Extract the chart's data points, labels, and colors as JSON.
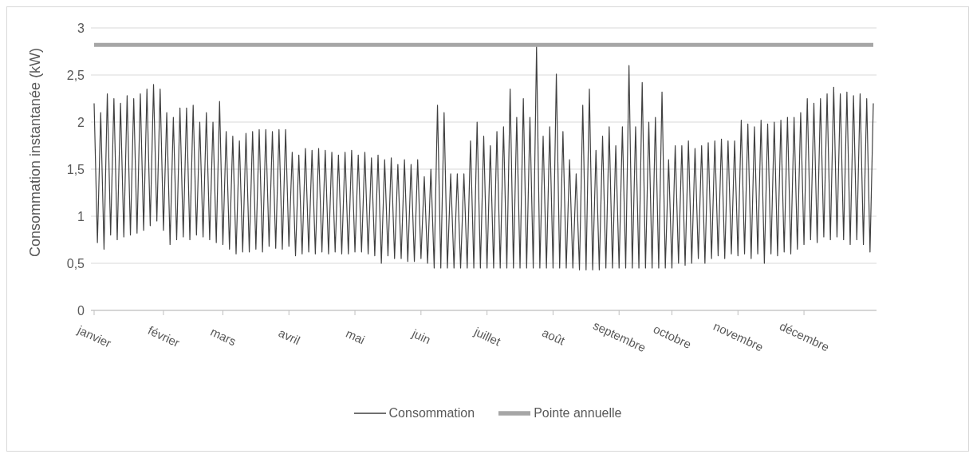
{
  "chart_data": {
    "type": "line",
    "ylabel": "Consommation instantanée (kW)",
    "categories": [
      "janvier",
      null,
      null,
      null,
      null,
      null,
      null,
      null,
      null,
      null,
      null,
      null,
      null,
      null,
      null,
      null,
      null,
      null,
      null,
      null,
      null,
      "février",
      null,
      null,
      null,
      null,
      null,
      null,
      null,
      null,
      null,
      null,
      null,
      null,
      null,
      null,
      null,
      null,
      null,
      "mars",
      null,
      null,
      null,
      null,
      null,
      null,
      null,
      null,
      null,
      null,
      null,
      null,
      null,
      null,
      null,
      null,
      null,
      null,
      null,
      "avril",
      null,
      null,
      null,
      null,
      null,
      null,
      null,
      null,
      null,
      null,
      null,
      null,
      null,
      null,
      null,
      null,
      null,
      null,
      null,
      "mai",
      null,
      null,
      null,
      null,
      null,
      null,
      null,
      null,
      null,
      null,
      null,
      null,
      null,
      null,
      null,
      null,
      null,
      null,
      null,
      "juin",
      null,
      null,
      null,
      null,
      null,
      null,
      null,
      null,
      null,
      null,
      null,
      null,
      null,
      null,
      null,
      null,
      null,
      null,
      null,
      "juillet",
      null,
      null,
      null,
      null,
      null,
      null,
      null,
      null,
      null,
      null,
      null,
      null,
      null,
      null,
      null,
      null,
      null,
      null,
      null,
      "août",
      null,
      null,
      null,
      null,
      null,
      null,
      null,
      null,
      null,
      null,
      null,
      null,
      null,
      null,
      null,
      null,
      null,
      null,
      null,
      "septembre",
      null,
      null,
      null,
      null,
      null,
      null,
      null,
      null,
      null,
      null,
      null,
      null,
      null,
      null,
      null,
      "octobre",
      null,
      null,
      null,
      null,
      null,
      null,
      null,
      null,
      null,
      null,
      null,
      null,
      null,
      null,
      null,
      null,
      null,
      null,
      null,
      "novembre",
      null,
      null,
      null,
      null,
      null,
      null,
      null,
      null,
      null,
      null,
      null,
      null,
      null,
      null,
      null,
      null,
      null,
      null,
      null,
      "décembre",
      null,
      null,
      null,
      null,
      null,
      null,
      null,
      null,
      null,
      null,
      null,
      null,
      null,
      null,
      null,
      null,
      null,
      null,
      null,
      null,
      null
    ],
    "ylim": [
      0,
      3
    ],
    "yticks": [
      0,
      {
        "value": 0.5,
        "label": "0,5"
      },
      1,
      {
        "value": 1.5,
        "label": "1,5"
      },
      2,
      {
        "value": 2.5,
        "label": "2,5"
      },
      3
    ],
    "grid": "y",
    "legend": "bottom",
    "marker": "none",
    "line_style": "solid",
    "series": [
      {
        "name": "Consommation",
        "color": "#404040",
        "values": [
          2.2,
          0.72,
          2.1,
          0.65,
          2.3,
          0.8,
          2.25,
          0.75,
          2.2,
          0.78,
          2.28,
          0.8,
          2.25,
          0.82,
          2.3,
          0.85,
          2.35,
          0.9,
          2.4,
          0.95,
          2.35,
          0.85,
          2.1,
          0.7,
          2.05,
          0.75,
          2.15,
          0.78,
          2.15,
          0.75,
          2.18,
          0.8,
          2.0,
          0.78,
          2.1,
          0.75,
          2.0,
          0.72,
          2.22,
          0.7,
          1.9,
          0.65,
          1.85,
          0.6,
          1.8,
          0.62,
          1.88,
          0.62,
          1.9,
          0.65,
          1.92,
          0.62,
          1.92,
          0.68,
          1.9,
          0.66,
          1.92,
          0.65,
          1.92,
          0.68,
          1.68,
          0.58,
          1.65,
          0.6,
          1.72,
          0.62,
          1.7,
          0.6,
          1.72,
          0.62,
          1.7,
          0.6,
          1.68,
          0.62,
          1.65,
          0.6,
          1.68,
          0.6,
          1.7,
          0.62,
          1.65,
          0.62,
          1.68,
          0.6,
          1.62,
          0.58,
          1.65,
          0.5,
          1.6,
          0.58,
          1.62,
          0.55,
          1.55,
          0.55,
          1.6,
          0.52,
          1.55,
          0.52,
          1.6,
          0.55,
          1.42,
          0.5,
          1.5,
          0.45,
          2.18,
          0.45,
          2.1,
          0.45,
          1.45,
          0.45,
          1.45,
          0.45,
          1.45,
          0.45,
          1.8,
          0.45,
          2.0,
          0.45,
          1.85,
          0.45,
          1.75,
          0.45,
          1.9,
          0.45,
          1.95,
          0.45,
          2.35,
          0.45,
          2.05,
          0.45,
          2.25,
          0.45,
          2.05,
          0.45,
          2.8,
          0.45,
          1.85,
          0.45,
          1.95,
          0.45,
          2.51,
          0.45,
          1.9,
          0.45,
          1.6,
          0.45,
          1.45,
          0.43,
          2.18,
          0.43,
          2.35,
          0.43,
          1.7,
          0.43,
          1.85,
          0.45,
          1.95,
          0.45,
          1.75,
          0.45,
          1.95,
          0.45,
          2.6,
          0.45,
          1.95,
          0.45,
          2.42,
          0.45,
          2.0,
          0.45,
          2.05,
          0.45,
          2.32,
          0.45,
          1.6,
          0.45,
          1.75,
          0.5,
          1.75,
          0.48,
          1.8,
          0.5,
          1.72,
          0.55,
          1.75,
          0.5,
          1.78,
          0.55,
          1.8,
          0.58,
          1.82,
          0.55,
          1.8,
          0.6,
          1.8,
          0.58,
          2.02,
          0.6,
          1.98,
          0.55,
          1.95,
          0.6,
          2.02,
          0.5,
          1.98,
          0.6,
          2.0,
          0.58,
          2.02,
          0.62,
          2.05,
          0.6,
          2.05,
          0.65,
          2.1,
          0.7,
          2.25,
          0.75,
          2.2,
          0.72,
          2.25,
          0.78,
          2.3,
          0.75,
          2.37,
          0.78,
          2.3,
          0.75,
          2.32,
          0.7,
          2.28,
          0.75,
          2.3,
          0.7,
          2.25,
          0.62,
          2.2
        ]
      },
      {
        "name": "Pointe annuelle",
        "color": "#a6a6a6",
        "values": [
          2.82,
          2.82,
          2.82,
          2.82,
          2.82,
          2.82,
          2.82,
          2.82,
          2.82,
          2.82,
          2.82,
          2.82,
          2.82,
          2.82,
          2.82,
          2.82,
          2.82,
          2.82,
          2.82,
          2.82,
          2.82,
          2.82,
          2.82,
          2.82,
          2.82,
          2.82,
          2.82,
          2.82,
          2.82,
          2.82,
          2.82,
          2.82,
          2.82,
          2.82,
          2.82,
          2.82,
          2.82,
          2.82,
          2.82,
          2.82,
          2.82,
          2.82,
          2.82,
          2.82,
          2.82,
          2.82,
          2.82,
          2.82,
          2.82,
          2.82,
          2.82,
          2.82,
          2.82,
          2.82,
          2.82,
          2.82,
          2.82,
          2.82,
          2.82,
          2.82,
          2.82,
          2.82,
          2.82,
          2.82,
          2.82,
          2.82,
          2.82,
          2.82,
          2.82,
          2.82,
          2.82,
          2.82,
          2.82,
          2.82,
          2.82,
          2.82,
          2.82,
          2.82,
          2.82,
          2.82,
          2.82,
          2.82,
          2.82,
          2.82,
          2.82,
          2.82,
          2.82,
          2.82,
          2.82,
          2.82,
          2.82,
          2.82,
          2.82,
          2.82,
          2.82,
          2.82,
          2.82,
          2.82,
          2.82,
          2.82,
          2.82,
          2.82,
          2.82,
          2.82,
          2.82,
          2.82,
          2.82,
          2.82,
          2.82,
          2.82,
          2.82,
          2.82,
          2.82,
          2.82,
          2.82,
          2.82,
          2.82,
          2.82,
          2.82,
          2.82,
          2.82,
          2.82,
          2.82,
          2.82,
          2.82,
          2.82,
          2.82,
          2.82,
          2.82,
          2.82,
          2.82,
          2.82,
          2.82,
          2.82,
          2.82,
          2.82,
          2.82,
          2.82,
          2.82,
          2.82,
          2.82,
          2.82,
          2.82,
          2.82,
          2.82,
          2.82,
          2.82,
          2.82,
          2.82,
          2.82,
          2.82,
          2.82,
          2.82,
          2.82,
          2.82,
          2.82,
          2.82,
          2.82,
          2.82,
          2.82,
          2.82,
          2.82,
          2.82,
          2.82,
          2.82,
          2.82,
          2.82,
          2.82,
          2.82,
          2.82,
          2.82,
          2.82,
          2.82,
          2.82,
          2.82,
          2.82,
          2.82,
          2.82,
          2.82,
          2.82,
          2.82,
          2.82,
          2.82,
          2.82,
          2.82,
          2.82,
          2.82,
          2.82,
          2.82,
          2.82,
          2.82,
          2.82,
          2.82,
          2.82,
          2.82,
          2.82,
          2.82,
          2.82,
          2.82,
          2.82,
          2.82,
          2.82,
          2.82,
          2.82,
          2.82,
          2.82,
          2.82,
          2.82,
          2.82,
          2.82,
          2.82,
          2.82,
          2.82,
          2.82,
          2.82,
          2.82,
          2.82,
          2.82,
          2.82,
          2.82,
          2.82,
          2.82,
          2.82,
          2.82,
          2.82,
          2.82,
          2.82,
          2.82,
          2.82,
          2.82,
          2.82,
          2.82,
          2.82,
          2.82,
          2.82,
          2.82,
          2.82
        ]
      }
    ]
  }
}
